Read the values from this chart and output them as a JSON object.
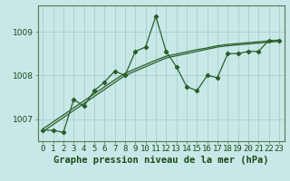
{
  "title": "Graphe pression niveau de la mer (hPa)",
  "background_color": "#c8e8e8",
  "plot_bg_color": "#c8e8e8",
  "grid_color": "#a0c8c8",
  "line_color": "#2a5e2a",
  "x_labels": [
    "0",
    "1",
    "2",
    "3",
    "4",
    "5",
    "6",
    "7",
    "8",
    "9",
    "10",
    "11",
    "12",
    "13",
    "14",
    "15",
    "16",
    "17",
    "18",
    "19",
    "20",
    "21",
    "22",
    "23"
  ],
  "x_values": [
    0,
    1,
    2,
    3,
    4,
    5,
    6,
    7,
    8,
    9,
    10,
    11,
    12,
    13,
    14,
    15,
    16,
    17,
    18,
    19,
    20,
    21,
    22,
    23
  ],
  "y_main": [
    1006.75,
    1006.75,
    1006.7,
    1007.45,
    1007.3,
    1007.65,
    1007.85,
    1008.1,
    1008.0,
    1008.55,
    1008.65,
    1009.35,
    1008.55,
    1008.2,
    1007.75,
    1007.65,
    1008.0,
    1007.95,
    1008.5,
    1008.5,
    1008.55,
    1008.55,
    1008.8,
    1008.8
  ],
  "y_trend1": [
    1006.72,
    1006.88,
    1007.04,
    1007.2,
    1007.36,
    1007.52,
    1007.68,
    1007.84,
    1008.0,
    1008.1,
    1008.2,
    1008.3,
    1008.4,
    1008.45,
    1008.5,
    1008.55,
    1008.6,
    1008.65,
    1008.68,
    1008.7,
    1008.72,
    1008.74,
    1008.76,
    1008.78
  ],
  "y_trend2": [
    1006.78,
    1006.94,
    1007.1,
    1007.26,
    1007.42,
    1007.58,
    1007.74,
    1007.9,
    1008.05,
    1008.15,
    1008.25,
    1008.35,
    1008.44,
    1008.49,
    1008.54,
    1008.59,
    1008.63,
    1008.68,
    1008.71,
    1008.73,
    1008.75,
    1008.77,
    1008.79,
    1008.81
  ],
  "ylim": [
    1006.5,
    1009.6
  ],
  "yticks": [
    1007,
    1008,
    1009
  ],
  "title_fontsize": 7.5,
  "tick_fontsize": 6.5
}
